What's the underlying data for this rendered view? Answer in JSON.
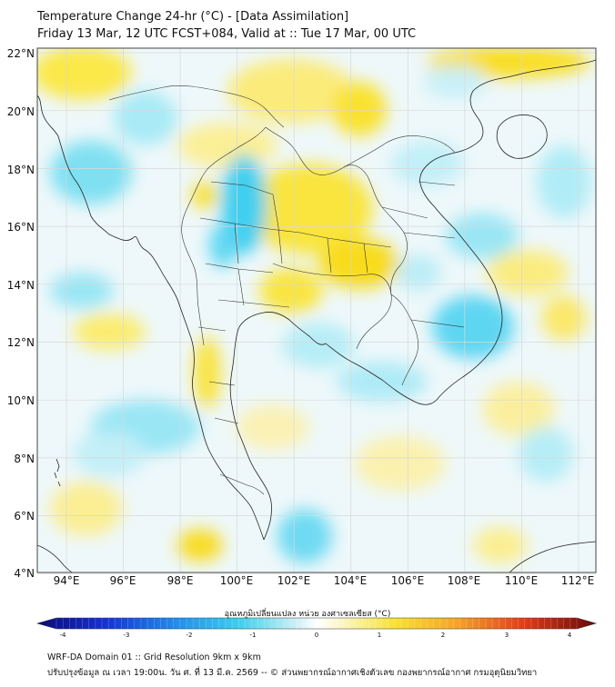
{
  "header": {
    "title_line1": "Temperature Change 24-hr (°C) - [Data Assimilation]",
    "title_line2": "Friday 13 Mar, 12 UTC FCST+084, Valid at :: Tue 17 Mar, 00 UTC"
  },
  "axes": {
    "lat_labels": [
      "22°N",
      "20°N",
      "18°N",
      "16°N",
      "14°N",
      "12°N",
      "10°N",
      "8°N",
      "6°N",
      "4°N"
    ],
    "lon_labels": [
      "94°E",
      "96°E",
      "98°E",
      "100°E",
      "102°E",
      "104°E",
      "106°E",
      "108°E",
      "110°E",
      "112°E"
    ]
  },
  "colorbar": {
    "title": "อุณหภูมิเปลี่ยนแปลง หน่วย องศาเซลเซียส (°C)",
    "ticks": [
      "-4",
      "-3",
      "-2",
      "-1",
      "0",
      "1",
      "2",
      "3",
      "4"
    ]
  },
  "footer": {
    "line1": "WRF-DA Domain 01 :: Grid Resolution 9km x 9km",
    "line2": "ปรับปรุงข้อมูล ณ เวลา 19:00น. วัน ศ. ที่ 13 มี.ค. 2569 -- © ส่วนพยากรณ์อากาศเชิงตัวเลข กองพยากรณ์อากาศ กรมอุตุนิยมวิทยา"
  },
  "colors": {
    "cold": "#3ad0ec",
    "neutral": "#f4f9fa",
    "warm": "#f9ea2e",
    "border": "#222222",
    "grid": "#d8d8d8"
  }
}
